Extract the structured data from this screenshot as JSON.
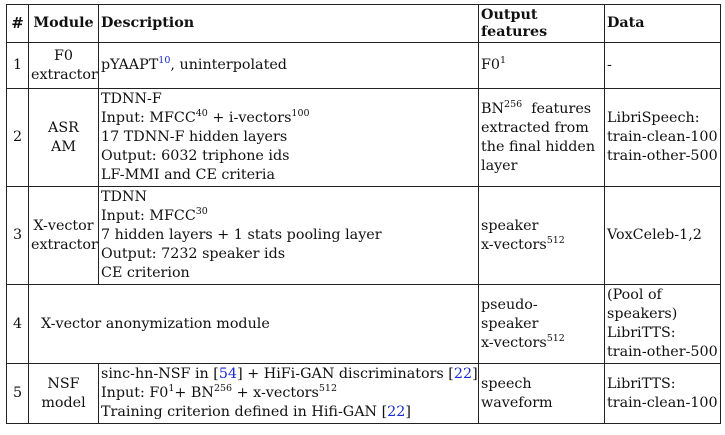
{
  "header": {
    "num": "#",
    "module": "Module",
    "description": "Description",
    "output_line1": "Output",
    "output_line2": "features",
    "data": "Data"
  },
  "rows": [
    {
      "num": "1",
      "module": [
        "F0",
        "extractor"
      ],
      "description": {
        "text": "pYAAPT",
        "cite": "10",
        "rest": ", uninterpolated"
      },
      "output": {
        "text": "F0",
        "sup": "1"
      },
      "data": [
        "-"
      ]
    },
    {
      "num": "2",
      "module": [
        "ASR",
        "AM"
      ],
      "description": {
        "l1": "TDNN-F",
        "l2a": "Input: MFCC",
        "l2s1": "40",
        "l2b": " + i-vectors",
        "l2s2": "100",
        "l3": "17 TDNN-F hidden layers",
        "l4": "Output: 6032 triphone ids",
        "l5": "LF-MMI and CE criteria"
      },
      "output": {
        "a": "BN",
        "s": "256",
        "b": "  features",
        "l2": "extracted from",
        "l3": "the final hidden",
        "l4": "layer"
      },
      "data": [
        "LibriSpeech:",
        "train-clean-100",
        "train-other-500"
      ]
    },
    {
      "num": "3",
      "module": [
        "X-vector",
        "extractor"
      ],
      "description": {
        "l1": "TDNN",
        "l2a": "Input: MFCC",
        "l2s": "30",
        "l3": "7 hidden layers + 1 stats pooling layer",
        "l4": "Output: 7232 speaker ids",
        "l5": "CE criterion"
      },
      "output": {
        "l1": "speaker",
        "a": "x-vectors",
        "s": "512"
      },
      "data": [
        "VoxCeleb-1,2"
      ]
    },
    {
      "num": "4",
      "module_description": "X-vector anonymization module",
      "output": {
        "l1": "pseudo-",
        "l2": "speaker",
        "a": "x-vectors",
        "s": "512"
      },
      "data": [
        "(Pool of",
        "speakers)",
        "LibriTTS:",
        "train-other-500"
      ]
    },
    {
      "num": "5",
      "module": [
        "NSF",
        "model"
      ],
      "description": {
        "l1a": "sinc-hn-NSF in [",
        "l1c1": "54",
        "l1b": "] + HiFi-GAN discriminators [",
        "l1c2": "22",
        "l1d": "]",
        "l2a": "Input: F0",
        "l2s1": "1",
        "l2b": "+ BN",
        "l2s2": "256",
        "l2c": " + x-vectors",
        "l2s3": "512",
        "l3a": "Training criterion defined in Hifi-GAN [",
        "l3c": "22",
        "l3b": "]"
      },
      "output": {
        "l1": "speech waveform"
      },
      "data": [
        "LibriTTS:",
        "train-clean-100"
      ]
    }
  ]
}
